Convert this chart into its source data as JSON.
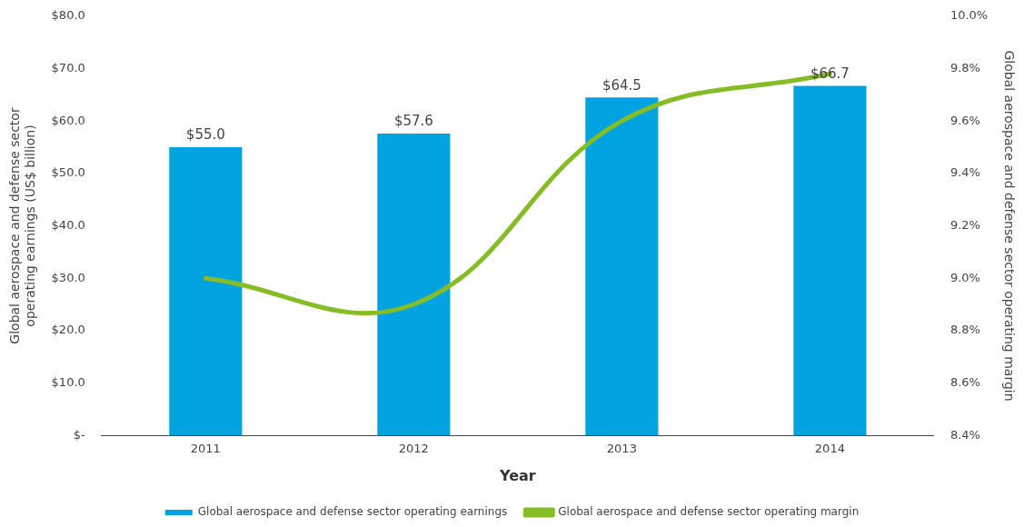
{
  "chart_data": {
    "type": "bar",
    "categories": [
      "2011",
      "2012",
      "2013",
      "2014"
    ],
    "series": [
      {
        "name": "Global aerospace and defense sector operating earnings",
        "color": "#00a3e0",
        "values": [
          55.0,
          57.6,
          64.5,
          66.7
        ],
        "value_labels": [
          "$55.0",
          "$57.6",
          "$64.5",
          "$66.7"
        ]
      },
      {
        "name": "Global aerospace and defense sector operating margin",
        "type": "line",
        "axis": "y2",
        "color": "#86bc25",
        "values": [
          9.0,
          8.9,
          9.6,
          9.78
        ]
      }
    ],
    "xlabel": "Year",
    "ylabel": "Global aerospace and defense sector operating earnings (US$ billion)",
    "y2label": "Global aerospace and defense sector operating margin",
    "ylim": [
      0,
      80
    ],
    "yticks": [
      {
        "value": 0,
        "label": "$-"
      },
      {
        "value": 10,
        "label": "$10.0"
      },
      {
        "value": 20,
        "label": "$20.0"
      },
      {
        "value": 30,
        "label": "$30.0"
      },
      {
        "value": 40,
        "label": "$40.0"
      },
      {
        "value": 50,
        "label": "$50.0"
      },
      {
        "value": 60,
        "label": "$60.0"
      },
      {
        "value": 70,
        "label": "$70.0"
      },
      {
        "value": 80,
        "label": "$80.0"
      }
    ],
    "y2lim": [
      8.4,
      10.0
    ],
    "y2ticks": [
      {
        "value": 8.4,
        "label": "8.4%"
      },
      {
        "value": 8.6,
        "label": "8.6%"
      },
      {
        "value": 8.8,
        "label": "8.8%"
      },
      {
        "value": 9.0,
        "label": "9.0%"
      },
      {
        "value": 9.2,
        "label": "9.2%"
      },
      {
        "value": 9.4,
        "label": "9.4%"
      },
      {
        "value": 9.6,
        "label": "9.6%"
      },
      {
        "value": 9.8,
        "label": "9.8%"
      },
      {
        "value": 10.0,
        "label": "10.0%"
      }
    ],
    "grid": false,
    "legend": "bottom",
    "marker": "none"
  }
}
